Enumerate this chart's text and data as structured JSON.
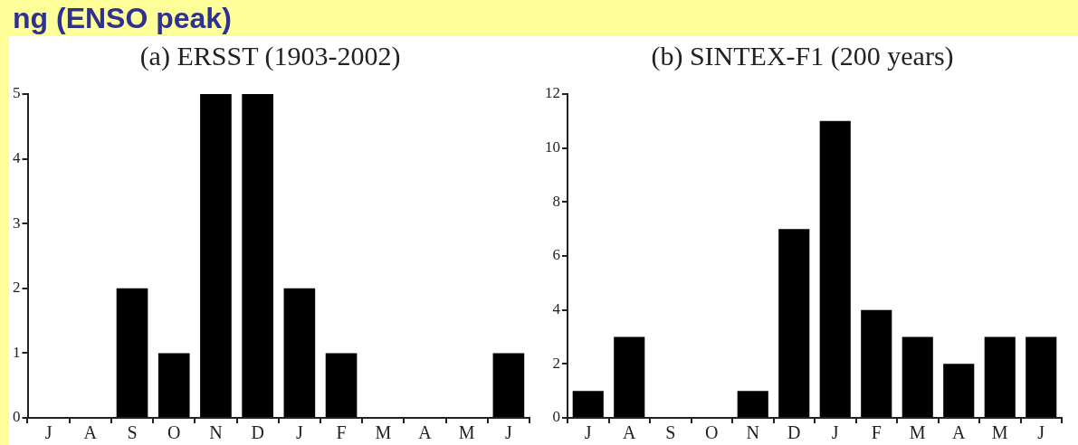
{
  "chart_data": [
    {
      "type": "bar",
      "title": "(a) ERSST (1903-2002)",
      "annotations": [
        "ng (ENSO peak)"
      ],
      "categories": [
        "J",
        "A",
        "S",
        "O",
        "N",
        "D",
        "J",
        "F",
        "M",
        "A",
        "M",
        "J"
      ],
      "values": [
        0,
        0,
        2,
        1,
        5,
        5,
        2,
        1,
        0,
        0,
        0,
        1
      ],
      "color": "#000000",
      "ylim": [
        0,
        5
      ],
      "yticks": [
        0,
        1,
        2,
        3,
        4,
        5
      ],
      "grid": false,
      "legend": false
    },
    {
      "type": "bar",
      "title": "(b) SINTEX-F1 (200 years)",
      "categories": [
        "J",
        "A",
        "S",
        "O",
        "N",
        "D",
        "J",
        "F",
        "M",
        "A",
        "M",
        "J"
      ],
      "values": [
        1,
        3,
        0,
        0,
        1,
        7,
        11,
        4,
        3,
        2,
        3,
        3
      ],
      "color": "#000000",
      "ylim": [
        0,
        12
      ],
      "yticks": [
        0,
        2,
        4,
        6,
        8,
        10,
        12
      ],
      "grid": false,
      "legend": false
    }
  ]
}
